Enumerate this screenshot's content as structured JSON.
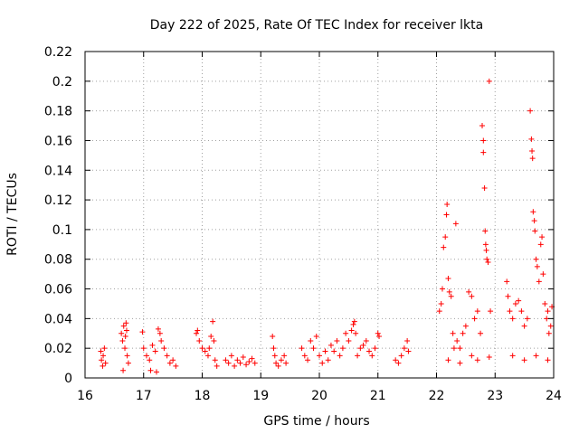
{
  "chart_data": {
    "type": "scatter",
    "title": "Day 222 of 2025, Rate Of TEC Index for receiver lkta",
    "xlabel": "GPS time / hours",
    "ylabel": "ROTI / TECUs",
    "xlim": [
      16,
      24
    ],
    "ylim": [
      0,
      0.22
    ],
    "xticks": [
      16,
      17,
      18,
      19,
      20,
      21,
      22,
      23,
      24
    ],
    "xtick_labels": [
      "16",
      "17",
      "18",
      "19",
      "20",
      "21",
      "22",
      "23",
      "24"
    ],
    "yticks": [
      0,
      0.02,
      0.04,
      0.06,
      0.08,
      0.1,
      0.12,
      0.14,
      0.16,
      0.18,
      0.2,
      0.22
    ],
    "ytick_labels": [
      "0",
      "0.02",
      "0.04",
      "0.06",
      "0.08",
      "0.1",
      "0.12",
      "0.14",
      "0.16",
      "0.18",
      "0.2",
      "0.22"
    ],
    "grid": true,
    "marker": "+",
    "marker_color": "#ff0000",
    "series": [
      {
        "name": "ROTI",
        "points": [
          [
            16.27,
            0.018
          ],
          [
            16.28,
            0.012
          ],
          [
            16.3,
            0.008
          ],
          [
            16.31,
            0.015
          ],
          [
            16.33,
            0.02
          ],
          [
            16.35,
            0.01
          ],
          [
            16.62,
            0.03
          ],
          [
            16.64,
            0.025
          ],
          [
            16.66,
            0.035
          ],
          [
            16.68,
            0.02
          ],
          [
            16.7,
            0.037
          ],
          [
            16.72,
            0.015
          ],
          [
            16.74,
            0.01
          ],
          [
            16.65,
            0.005
          ],
          [
            16.69,
            0.028
          ],
          [
            16.71,
            0.032
          ],
          [
            16.98,
            0.031
          ],
          [
            17.0,
            0.02
          ],
          [
            17.05,
            0.015
          ],
          [
            17.1,
            0.012
          ],
          [
            17.15,
            0.022
          ],
          [
            17.2,
            0.018
          ],
          [
            17.25,
            0.033
          ],
          [
            17.28,
            0.03
          ],
          [
            17.3,
            0.025
          ],
          [
            17.35,
            0.02
          ],
          [
            17.4,
            0.015
          ],
          [
            17.45,
            0.01
          ],
          [
            17.5,
            0.012
          ],
          [
            17.55,
            0.008
          ],
          [
            17.12,
            0.005
          ],
          [
            17.22,
            0.004
          ],
          [
            17.9,
            0.03
          ],
          [
            17.92,
            0.032
          ],
          [
            17.95,
            0.025
          ],
          [
            18.0,
            0.02
          ],
          [
            18.05,
            0.018
          ],
          [
            18.1,
            0.015
          ],
          [
            18.12,
            0.02
          ],
          [
            18.15,
            0.028
          ],
          [
            18.18,
            0.038
          ],
          [
            18.2,
            0.025
          ],
          [
            18.22,
            0.012
          ],
          [
            18.25,
            0.008
          ],
          [
            18.4,
            0.012
          ],
          [
            18.45,
            0.01
          ],
          [
            18.5,
            0.015
          ],
          [
            18.55,
            0.008
          ],
          [
            18.6,
            0.012
          ],
          [
            18.65,
            0.01
          ],
          [
            18.7,
            0.014
          ],
          [
            18.75,
            0.009
          ],
          [
            18.8,
            0.011
          ],
          [
            18.85,
            0.013
          ],
          [
            18.9,
            0.01
          ],
          [
            19.2,
            0.028
          ],
          [
            19.22,
            0.02
          ],
          [
            19.24,
            0.015
          ],
          [
            19.26,
            0.01
          ],
          [
            19.3,
            0.008
          ],
          [
            19.35,
            0.012
          ],
          [
            19.4,
            0.015
          ],
          [
            19.43,
            0.01
          ],
          [
            19.7,
            0.02
          ],
          [
            19.75,
            0.015
          ],
          [
            19.8,
            0.012
          ],
          [
            19.85,
            0.025
          ],
          [
            19.9,
            0.02
          ],
          [
            19.95,
            0.028
          ],
          [
            20.0,
            0.015
          ],
          [
            20.05,
            0.01
          ],
          [
            20.1,
            0.018
          ],
          [
            20.15,
            0.012
          ],
          [
            20.2,
            0.022
          ],
          [
            20.25,
            0.018
          ],
          [
            20.3,
            0.025
          ],
          [
            20.35,
            0.015
          ],
          [
            20.4,
            0.02
          ],
          [
            20.45,
            0.03
          ],
          [
            20.5,
            0.025
          ],
          [
            20.55,
            0.032
          ],
          [
            20.58,
            0.036
          ],
          [
            20.6,
            0.038
          ],
          [
            20.62,
            0.03
          ],
          [
            20.65,
            0.015
          ],
          [
            20.7,
            0.02
          ],
          [
            20.75,
            0.022
          ],
          [
            20.8,
            0.025
          ],
          [
            20.85,
            0.018
          ],
          [
            20.9,
            0.015
          ],
          [
            20.95,
            0.02
          ],
          [
            21.0,
            0.03
          ],
          [
            21.02,
            0.028
          ],
          [
            21.3,
            0.012
          ],
          [
            21.35,
            0.01
          ],
          [
            21.4,
            0.015
          ],
          [
            21.45,
            0.02
          ],
          [
            21.5,
            0.025
          ],
          [
            21.52,
            0.018
          ],
          [
            22.05,
            0.045
          ],
          [
            22.08,
            0.05
          ],
          [
            22.1,
            0.06
          ],
          [
            22.12,
            0.088
          ],
          [
            22.15,
            0.095
          ],
          [
            22.17,
            0.11
          ],
          [
            22.18,
            0.117
          ],
          [
            22.2,
            0.067
          ],
          [
            22.22,
            0.058
          ],
          [
            22.25,
            0.055
          ],
          [
            22.28,
            0.03
          ],
          [
            22.3,
            0.02
          ],
          [
            22.33,
            0.104
          ],
          [
            22.35,
            0.025
          ],
          [
            22.4,
            0.02
          ],
          [
            22.45,
            0.03
          ],
          [
            22.5,
            0.035
          ],
          [
            22.55,
            0.058
          ],
          [
            22.6,
            0.055
          ],
          [
            22.65,
            0.04
          ],
          [
            22.7,
            0.045
          ],
          [
            22.75,
            0.03
          ],
          [
            22.78,
            0.17
          ],
          [
            22.8,
            0.16
          ],
          [
            22.8,
            0.152
          ],
          [
            22.82,
            0.128
          ],
          [
            22.83,
            0.099
          ],
          [
            22.84,
            0.09
          ],
          [
            22.85,
            0.086
          ],
          [
            22.86,
            0.08
          ],
          [
            22.88,
            0.078
          ],
          [
            22.9,
            0.2
          ],
          [
            22.92,
            0.045
          ],
          [
            22.2,
            0.012
          ],
          [
            22.4,
            0.01
          ],
          [
            22.6,
            0.015
          ],
          [
            22.7,
            0.012
          ],
          [
            22.9,
            0.014
          ],
          [
            23.2,
            0.065
          ],
          [
            23.22,
            0.055
          ],
          [
            23.25,
            0.045
          ],
          [
            23.3,
            0.04
          ],
          [
            23.35,
            0.05
          ],
          [
            23.4,
            0.052
          ],
          [
            23.45,
            0.045
          ],
          [
            23.5,
            0.035
          ],
          [
            23.55,
            0.04
          ],
          [
            23.6,
            0.18
          ],
          [
            23.62,
            0.161
          ],
          [
            23.63,
            0.153
          ],
          [
            23.64,
            0.148
          ],
          [
            23.65,
            0.112
          ],
          [
            23.67,
            0.106
          ],
          [
            23.68,
            0.099
          ],
          [
            23.7,
            0.08
          ],
          [
            23.72,
            0.075
          ],
          [
            23.75,
            0.065
          ],
          [
            23.78,
            0.09
          ],
          [
            23.8,
            0.095
          ],
          [
            23.82,
            0.07
          ],
          [
            23.85,
            0.05
          ],
          [
            23.88,
            0.04
          ],
          [
            23.9,
            0.045
          ],
          [
            23.92,
            0.03
          ],
          [
            23.95,
            0.035
          ],
          [
            23.97,
            0.048
          ],
          [
            23.3,
            0.015
          ],
          [
            23.5,
            0.012
          ],
          [
            23.7,
            0.015
          ],
          [
            23.9,
            0.012
          ]
        ]
      }
    ]
  }
}
